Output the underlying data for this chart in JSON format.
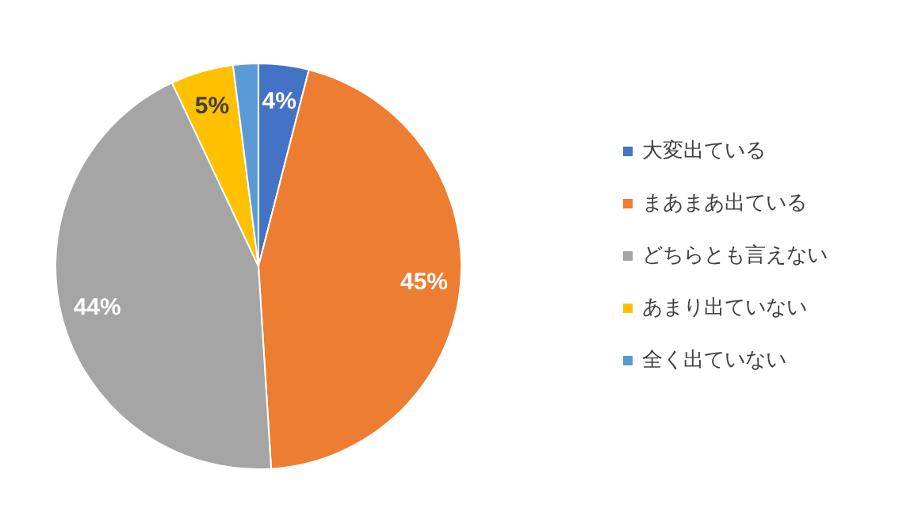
{
  "chart_data": {
    "type": "pie",
    "categories": [
      "大変出ている",
      "まあまあ出ている",
      "どちらとも言えない",
      "あまり出ていない",
      "全く出ていない"
    ],
    "values": [
      4,
      45,
      44,
      5,
      2
    ],
    "colors": [
      "#4472c4",
      "#ed7d31",
      "#a5a5a5",
      "#ffc000",
      "#5b9bd5"
    ],
    "value_labels": [
      "4%",
      "45%",
      "44%",
      "5%",
      null
    ],
    "legend": "right"
  }
}
